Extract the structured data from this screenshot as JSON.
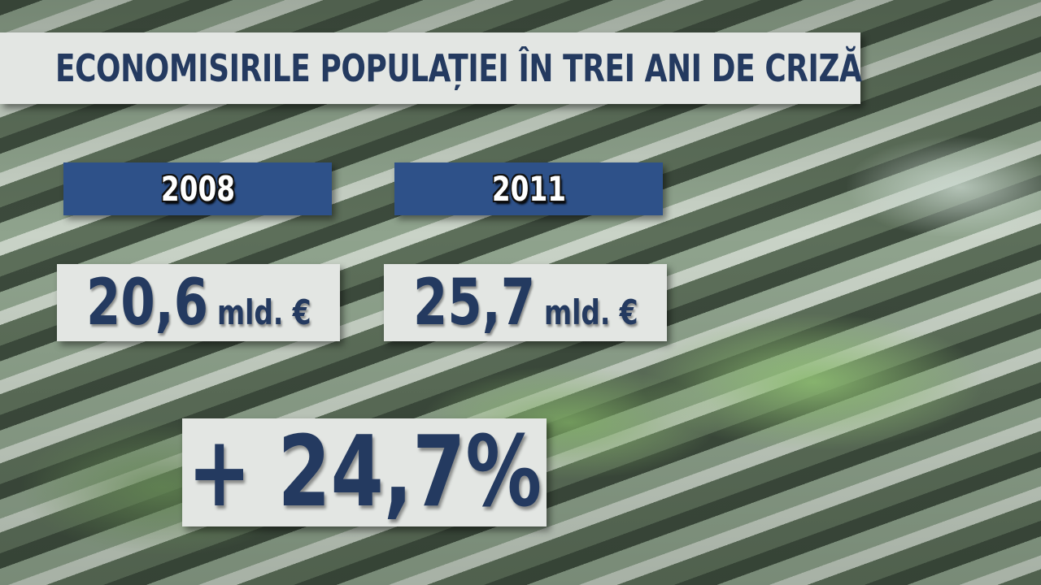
{
  "title": "ECONOMISIRILE POPULAȚIEI ÎN TREI ANI DE CRIZĂ",
  "columns": [
    {
      "year": "2008",
      "amount": "20,6",
      "unit": "mld. €"
    },
    {
      "year": "2011",
      "amount": "25,7",
      "unit": "mld. €"
    }
  ],
  "change": "+ 24,7%"
}
